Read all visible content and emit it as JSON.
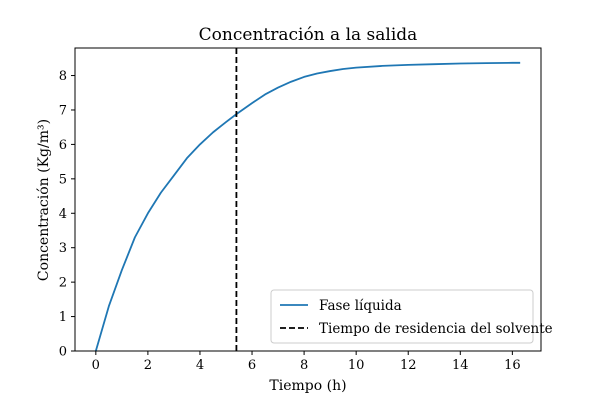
{
  "chart_data": {
    "type": "line",
    "title": "Concentración a la salida",
    "xlabel": "Tiempo (h)",
    "ylabel": "Concentración (Kg/m³)",
    "xlim": [
      -0.8,
      17.1
    ],
    "ylim": [
      0,
      8.8
    ],
    "xticks": [
      0,
      2,
      4,
      6,
      8,
      10,
      12,
      14,
      16
    ],
    "yticks": [
      0,
      1,
      2,
      3,
      4,
      5,
      6,
      7,
      8
    ],
    "grid": false,
    "legend_position": "lower-right",
    "series": [
      {
        "name": "Fase líquida",
        "style": "solid",
        "color": "#1f77b4",
        "x": [
          0,
          0.5,
          1,
          1.5,
          2,
          2.5,
          3,
          3.5,
          4,
          4.5,
          5,
          5.4,
          6,
          6.5,
          7,
          7.5,
          8,
          8.5,
          9,
          9.5,
          10,
          11,
          12,
          13,
          14,
          15,
          16,
          16.3
        ],
        "y": [
          0,
          1.3,
          2.35,
          3.3,
          4.0,
          4.6,
          5.1,
          5.6,
          6.0,
          6.35,
          6.65,
          6.88,
          7.2,
          7.45,
          7.65,
          7.82,
          7.96,
          8.06,
          8.13,
          8.19,
          8.23,
          8.28,
          8.31,
          8.33,
          8.35,
          8.36,
          8.37,
          8.37
        ]
      }
    ],
    "reference_lines": [
      {
        "name": "Tiempo de residencia del solvente",
        "orientation": "vertical",
        "style": "dashed",
        "color": "#000000",
        "x": 5.4
      }
    ]
  }
}
